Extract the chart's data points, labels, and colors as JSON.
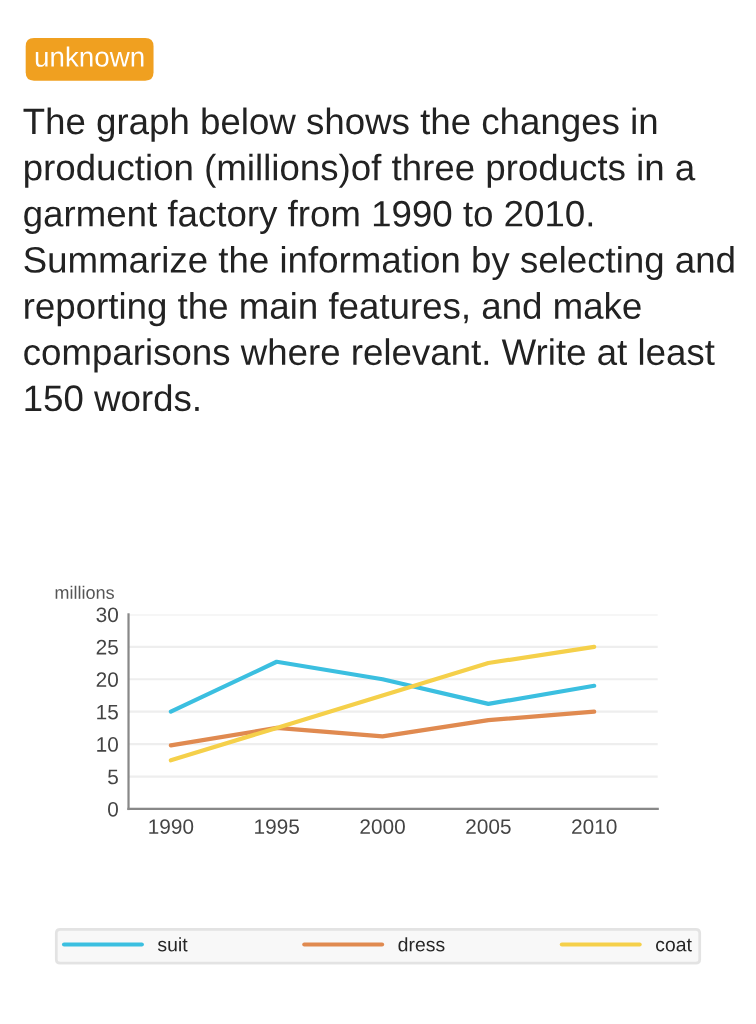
{
  "chart_data": {
    "type": "line",
    "title": "The graph below shows the changes in production (millions)of three products in a garment factory from 1990 to 2010. Summarize the information by selecting and reporting the main features, and make comparisons where relevant. Write at least 150 words.",
    "annotations": [
      "unknown"
    ],
    "ylabel": "millions",
    "categories": [
      "1990",
      "1995",
      "2000",
      "2005",
      "2010"
    ],
    "series": [
      {
        "name": "suit",
        "color": "#3bbfe0",
        "values": [
          15,
          22.7,
          20,
          16.2,
          19
        ]
      },
      {
        "name": "dress",
        "color": "#e08a50",
        "values": [
          9.8,
          12.5,
          11.2,
          13.7,
          15
        ]
      },
      {
        "name": "coat",
        "color": "#f5d04a",
        "values": [
          7.5,
          12.5,
          17.5,
          22.5,
          25
        ]
      }
    ],
    "ylim": [
      0,
      30
    ],
    "yticks": [
      0,
      5,
      10,
      15,
      20,
      25,
      30
    ],
    "grid": "y",
    "legend": "bottom",
    "marker": "none",
    "line_style": "solid"
  }
}
